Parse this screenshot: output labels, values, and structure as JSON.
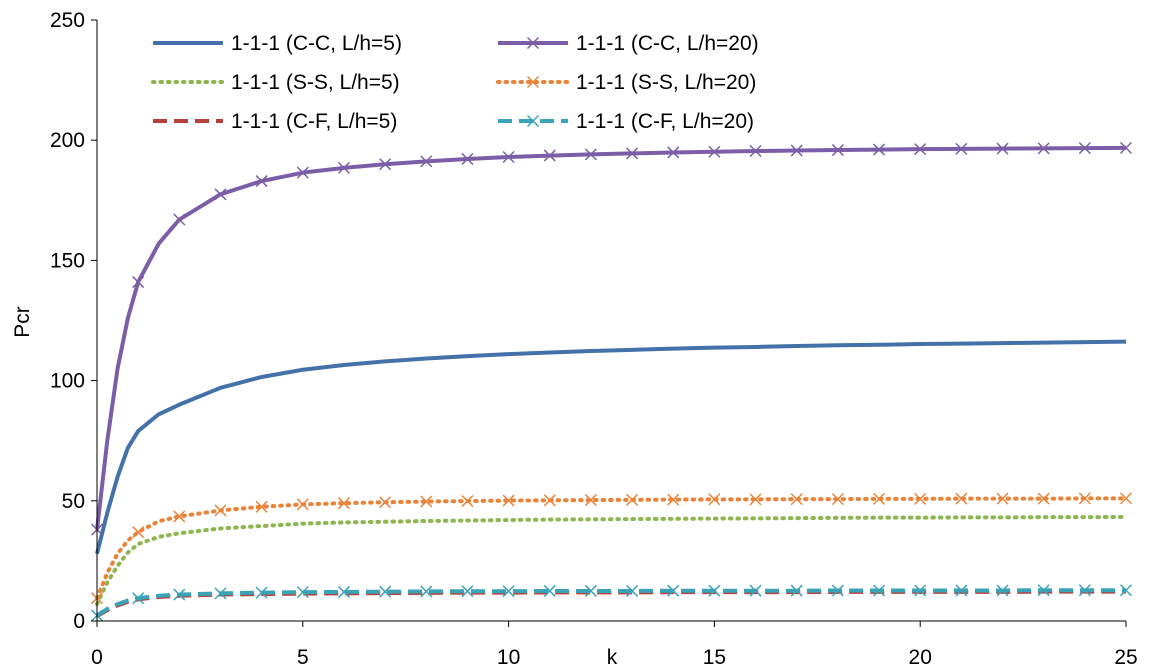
{
  "chart_data": {
    "type": "line",
    "title": "",
    "xlabel": "k",
    "ylabel": "Pcr",
    "xlim": [
      0,
      25
    ],
    "ylim": [
      0,
      250
    ],
    "x_ticks": [
      "0",
      "5",
      "10",
      "15",
      "20",
      "25"
    ],
    "y_ticks": [
      "0",
      "50",
      "100",
      "150",
      "200",
      "250"
    ],
    "grid": false,
    "legend_position": "top, inside plot, 2 columns",
    "x": [
      0,
      0.25,
      0.5,
      0.75,
      1,
      1.5,
      2,
      3,
      4,
      5,
      6,
      7,
      8,
      9,
      10,
      11,
      12,
      13,
      14,
      15,
      16,
      17,
      18,
      19,
      20,
      21,
      22,
      23,
      24,
      25
    ],
    "series": [
      {
        "name": "1-1-1 (C-C, L/h=5)",
        "style": "solid",
        "color": "#4472a8",
        "marker": "none",
        "values": [
          28,
          45,
          60,
          72,
          79,
          86,
          90,
          97,
          101.5,
          104.5,
          106.5,
          108,
          109.2,
          110.2,
          111,
          111.7,
          112.3,
          112.8,
          113.3,
          113.7,
          114,
          114.4,
          114.7,
          114.9,
          115.2,
          115.4,
          115.6,
          115.8,
          116,
          116.2
        ]
      },
      {
        "name": "1-1-1 (C-C, L/h=20)",
        "style": "solid",
        "color": "#7b5ea7",
        "marker": "x",
        "values": [
          38,
          75,
          105,
          126,
          141,
          157,
          167,
          177.5,
          183,
          186.5,
          188.5,
          190,
          191.2,
          192.2,
          193,
          193.6,
          194.1,
          194.5,
          194.9,
          195.2,
          195.5,
          195.7,
          195.9,
          196.1,
          196.3,
          196.4,
          196.5,
          196.6,
          196.7,
          196.8
        ]
      },
      {
        "name": "1-1-1 (S-S, L/h=5)",
        "style": "dotted",
        "color": "#8db650",
        "marker": "none",
        "values": [
          7,
          16,
          23,
          28.5,
          32,
          35,
          36.5,
          38.5,
          39.5,
          40.5,
          41,
          41.3,
          41.6,
          41.8,
          42,
          42.2,
          42.3,
          42.4,
          42.5,
          42.6,
          42.7,
          42.8,
          42.9,
          43,
          43,
          43.1,
          43.1,
          43.2,
          43.2,
          43.3
        ]
      },
      {
        "name": "1-1-1 (S-S, L/h=20)",
        "style": "dotted",
        "color": "#e8843a",
        "marker": "x",
        "values": [
          9.5,
          20,
          28,
          33.5,
          37,
          41.5,
          43.5,
          46,
          47.5,
          48.5,
          49,
          49.4,
          49.7,
          49.9,
          50.1,
          50.2,
          50.3,
          50.4,
          50.5,
          50.6,
          50.6,
          50.7,
          50.7,
          50.8,
          50.8,
          50.9,
          50.9,
          50.9,
          51,
          51
        ]
      },
      {
        "name": "1-1-1 (C-F, L/h=5)",
        "style": "dashed",
        "color": "#b5403c",
        "marker": "none",
        "values": [
          2,
          4.5,
          6.5,
          8,
          9,
          10,
          10.5,
          11,
          11.2,
          11.4,
          11.5,
          11.6,
          11.7,
          11.8,
          11.8,
          11.9,
          11.9,
          11.9,
          12,
          12,
          12,
          12,
          12.1,
          12.1,
          12.1,
          12.1,
          12.1,
          12.2,
          12.2,
          12.2
        ]
      },
      {
        "name": "1-1-1 (C-F, L/h=20)",
        "style": "dashed",
        "color": "#3aa3b8",
        "marker": "x",
        "values": [
          2.3,
          5,
          7,
          8.5,
          9.5,
          10.5,
          11,
          11.5,
          11.8,
          12,
          12.1,
          12.2,
          12.3,
          12.4,
          12.4,
          12.5,
          12.5,
          12.5,
          12.6,
          12.6,
          12.6,
          12.6,
          12.7,
          12.7,
          12.7,
          12.7,
          12.7,
          12.8,
          12.8,
          12.8
        ]
      }
    ]
  }
}
